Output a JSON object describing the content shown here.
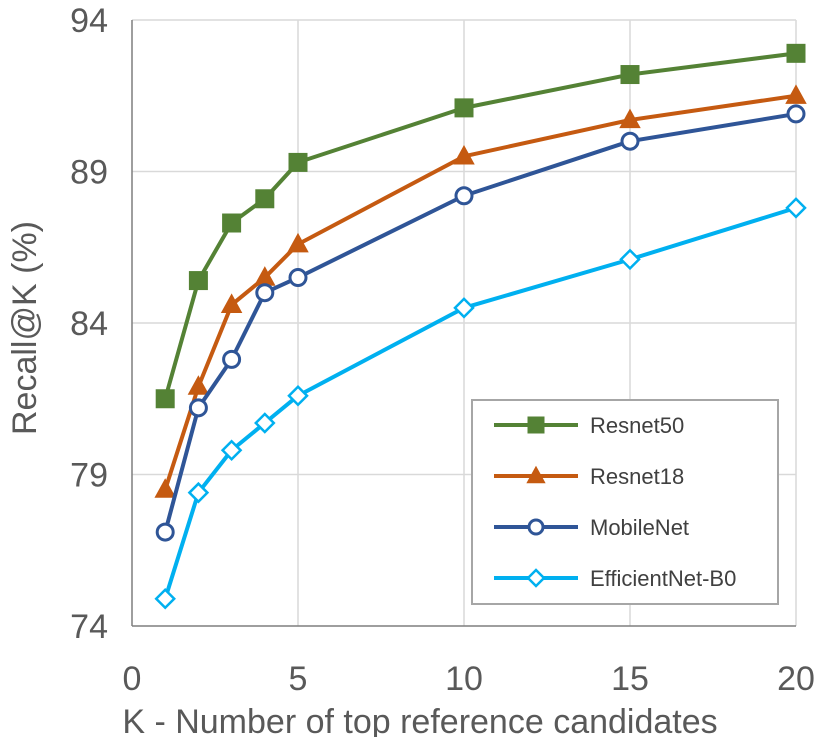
{
  "chart_data": {
    "type": "line",
    "title": "",
    "xlabel": "K - Number of top reference candidates",
    "ylabel": "Recall@K (%)",
    "xlim": [
      0,
      20
    ],
    "ylim": [
      74,
      94
    ],
    "xticks": [
      0,
      5,
      10,
      15,
      20
    ],
    "yticks": [
      74,
      79,
      84,
      89,
      94
    ],
    "xtick_labels": [
      "0",
      "5",
      "10",
      "15",
      "20"
    ],
    "ytick_labels": [
      "74",
      "79",
      "84",
      "89",
      "94"
    ],
    "grid": {
      "vertical": true,
      "horizontal": true
    },
    "legend_position": "bottom-right",
    "x": [
      1,
      2,
      3,
      4,
      5,
      10,
      15,
      20
    ],
    "series": [
      {
        "name": "Resnet50",
        "color": "#548235",
        "marker": "square",
        "filled": true,
        "values": [
          81.5,
          85.4,
          87.3,
          88.1,
          89.3,
          91.1,
          92.2,
          92.9
        ]
      },
      {
        "name": "Resnet18",
        "color": "#C55A11",
        "marker": "triangle",
        "filled": true,
        "values": [
          78.5,
          81.9,
          84.6,
          85.5,
          86.6,
          89.5,
          90.7,
          91.5
        ]
      },
      {
        "name": "MobileNet",
        "color": "#2F5597",
        "marker": "circle",
        "filled": false,
        "values": [
          77.1,
          81.2,
          82.8,
          85.0,
          85.5,
          88.2,
          90.0,
          90.9
        ]
      },
      {
        "name": "EfficientNet-B0",
        "color": "#00B0F0",
        "marker": "diamond",
        "filled": false,
        "values": [
          74.9,
          78.4,
          79.8,
          80.7,
          81.6,
          84.5,
          86.1,
          87.8
        ]
      }
    ]
  }
}
